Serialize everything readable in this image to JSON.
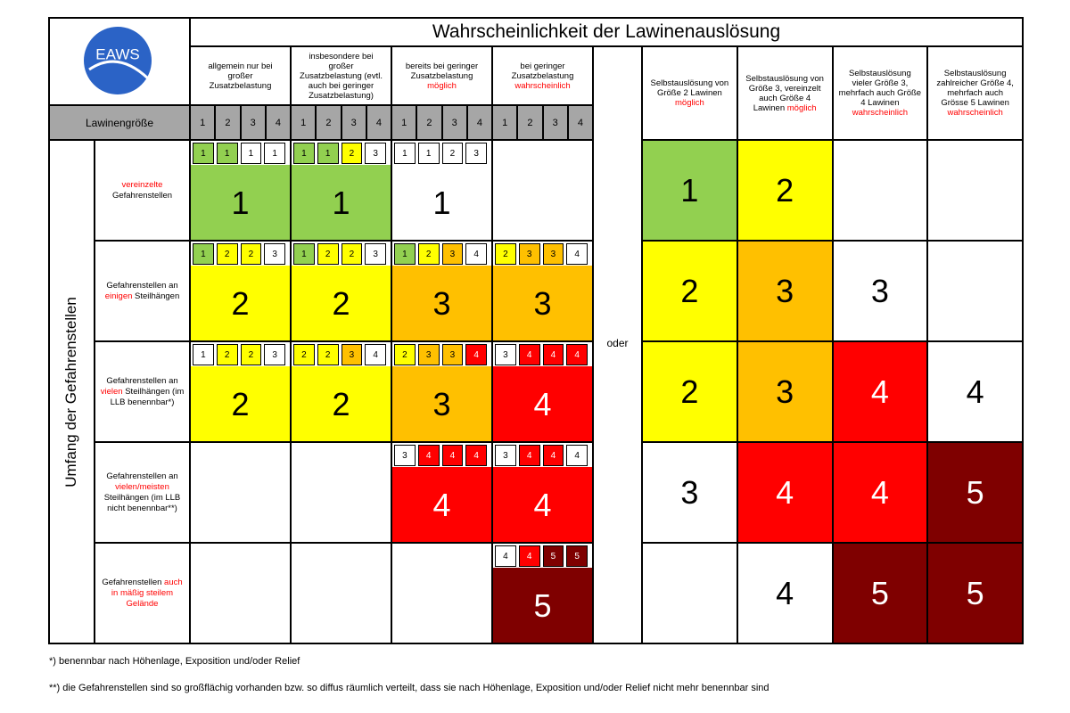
{
  "title": "Wahrscheinlichkeit der Lawinenauslösung",
  "logo": {
    "text": "EAWS"
  },
  "size_header": "Lawinengröße",
  "side_label": "Umfang der Gefahrenstellen",
  "separator": "oder",
  "left_columns": [
    {
      "header": [
        {
          "text": "allgemein nur bei großer Zusatzbelastung"
        }
      ],
      "sizes": [
        1,
        2,
        3,
        4
      ]
    },
    {
      "header": [
        {
          "text": "insbesondere bei großer Zusatzbelastung (evtl. auch bei geringer Zusatzbelastung)"
        }
      ],
      "sizes": [
        1,
        2,
        3,
        4
      ]
    },
    {
      "header": [
        {
          "text": "bereits bei geringer Zusatzbelastung"
        },
        {
          "text": "möglich",
          "color": "#ff0000"
        }
      ],
      "sizes": [
        1,
        2,
        3,
        4
      ]
    },
    {
      "header": [
        {
          "text": "bei geringer Zusatzbelastung"
        },
        {
          "text": "wahrscheinlich",
          "color": "#ff0000"
        }
      ],
      "sizes": [
        1,
        2,
        3,
        4
      ]
    }
  ],
  "right_columns": [
    {
      "header": [
        {
          "text": "Selbstauslösung von Größe 2 Lawinen"
        },
        {
          "text": "möglich",
          "color": "#ff0000"
        }
      ]
    },
    {
      "header": [
        {
          "text": "Selbstauslösung von Größe 3, vereinzelt auch Größe 4 Lawinen"
        },
        {
          "text": "möglich",
          "color": "#ff0000"
        }
      ]
    },
    {
      "header": [
        {
          "text": "Selbstauslösung vieler Größe 3, mehrfach auch Größe 4 Lawinen"
        },
        {
          "text": "wahrscheinlich",
          "color": "#ff0000"
        }
      ]
    },
    {
      "header": [
        {
          "text": "Selbstauslösung zahlreicher Größe 4, mehrfach auch Grösse 5 Lawinen"
        },
        {
          "text": "wahrscheinlich",
          "color": "#ff0000"
        }
      ]
    }
  ],
  "rows": [
    {
      "label": [
        {
          "text": "vereinzelte",
          "color": "#ff0000"
        },
        {
          "text": "Gefahrenstellen"
        }
      ],
      "left": [
        {
          "small": [
            {
              "value": 1,
              "color": "#92d050"
            },
            {
              "value": 1,
              "color": "#92d050"
            },
            {
              "value": 1,
              "color": "#ffffff"
            },
            {
              "value": 1,
              "color": "#ffffff"
            }
          ],
          "level": 1,
          "color": "#92d050"
        },
        {
          "small": [
            {
              "value": 1,
              "color": "#92d050"
            },
            {
              "value": 1,
              "color": "#92d050"
            },
            {
              "value": 2,
              "color": "#ffff00"
            },
            {
              "value": 3,
              "color": "#ffffff"
            }
          ],
          "level": 1,
          "color": "#92d050"
        },
        {
          "small": [
            {
              "value": 1,
              "color": "#ffffff"
            },
            {
              "value": 1,
              "color": "#ffffff"
            },
            {
              "value": 2,
              "color": "#ffffff"
            },
            {
              "value": 3,
              "color": "#ffffff"
            }
          ],
          "level": 1,
          "color": "#ffffff"
        },
        null
      ],
      "right": [
        {
          "level": 1,
          "color": "#92d050"
        },
        {
          "level": 2,
          "color": "#ffff00"
        },
        null,
        null
      ]
    },
    {
      "label": [
        {
          "text": "Gefahrenstellen an"
        },
        {
          "text": "einigen",
          "color": "#ff0000"
        },
        {
          "text": "Steilhängen"
        }
      ],
      "left": [
        {
          "small": [
            {
              "value": 1,
              "color": "#92d050"
            },
            {
              "value": 2,
              "color": "#ffff00"
            },
            {
              "value": 2,
              "color": "#ffff00"
            },
            {
              "value": 3,
              "color": "#ffffff"
            }
          ],
          "level": 2,
          "color": "#ffff00"
        },
        {
          "small": [
            {
              "value": 1,
              "color": "#92d050"
            },
            {
              "value": 2,
              "color": "#ffff00"
            },
            {
              "value": 2,
              "color": "#ffff00"
            },
            {
              "value": 3,
              "color": "#ffffff"
            }
          ],
          "level": 2,
          "color": "#ffff00"
        },
        {
          "small": [
            {
              "value": 1,
              "color": "#92d050"
            },
            {
              "value": 2,
              "color": "#ffff00"
            },
            {
              "value": 3,
              "color": "#ffc000"
            },
            {
              "value": 4,
              "color": "#ffffff"
            }
          ],
          "level": 3,
          "color": "#ffc000"
        },
        {
          "small": [
            {
              "value": 2,
              "color": "#ffff00"
            },
            {
              "value": 3,
              "color": "#ffc000"
            },
            {
              "value": 3,
              "color": "#ffc000"
            },
            {
              "value": 4,
              "color": "#ffffff"
            }
          ],
          "level": 3,
          "color": "#ffc000"
        }
      ],
      "right": [
        {
          "level": 2,
          "color": "#ffff00"
        },
        {
          "level": 3,
          "color": "#ffc000"
        },
        {
          "level": 3,
          "color": "#ffffff"
        },
        null
      ]
    },
    {
      "label": [
        {
          "text": "Gefahrenstellen an"
        },
        {
          "text": "vielen",
          "color": "#ff0000"
        },
        {
          "text": "Steilhängen (im LLB benennbar*)"
        }
      ],
      "left": [
        {
          "small": [
            {
              "value": 1,
              "color": "#ffffff"
            },
            {
              "value": 2,
              "color": "#ffff00"
            },
            {
              "value": 2,
              "color": "#ffff00"
            },
            {
              "value": 3,
              "color": "#ffffff"
            }
          ],
          "level": 2,
          "color": "#ffff00"
        },
        {
          "small": [
            {
              "value": 2,
              "color": "#ffff00"
            },
            {
              "value": 2,
              "color": "#ffff00"
            },
            {
              "value": 3,
              "color": "#ffc000"
            },
            {
              "value": 4,
              "color": "#ffffff"
            }
          ],
          "level": 2,
          "color": "#ffff00"
        },
        {
          "small": [
            {
              "value": 2,
              "color": "#ffff00"
            },
            {
              "value": 3,
              "color": "#ffc000"
            },
            {
              "value": 3,
              "color": "#ffc000"
            },
            {
              "value": 4,
              "color": "#ff0000"
            }
          ],
          "level": 3,
          "color": "#ffc000"
        },
        {
          "small": [
            {
              "value": 3,
              "color": "#ffffff"
            },
            {
              "value": 4,
              "color": "#ff0000"
            },
            {
              "value": 4,
              "color": "#ff0000"
            },
            {
              "value": 4,
              "color": "#ff0000"
            }
          ],
          "level": 4,
          "color": "#ff0000"
        }
      ],
      "right": [
        {
          "level": 2,
          "color": "#ffff00"
        },
        {
          "level": 3,
          "color": "#ffc000"
        },
        {
          "level": 4,
          "color": "#ff0000"
        },
        {
          "level": 4,
          "color": "#ffffff"
        }
      ]
    },
    {
      "label": [
        {
          "text": "Gefahrenstellen an"
        },
        {
          "text": "vielen/meisten",
          "color": "#ff0000"
        },
        {
          "text": "Steilhängen (im LLB nicht benennbar**)"
        }
      ],
      "left": [
        null,
        null,
        {
          "small": [
            {
              "value": 3,
              "color": "#ffffff"
            },
            {
              "value": 4,
              "color": "#ff0000"
            },
            {
              "value": 4,
              "color": "#ff0000"
            },
            {
              "value": 4,
              "color": "#ff0000"
            }
          ],
          "level": 4,
          "color": "#ff0000"
        },
        {
          "small": [
            {
              "value": 3,
              "color": "#ffffff"
            },
            {
              "value": 4,
              "color": "#ff0000"
            },
            {
              "value": 4,
              "color": "#ff0000"
            },
            {
              "value": 4,
              "color": "#ffffff"
            }
          ],
          "level": 4,
          "color": "#ff0000"
        }
      ],
      "right": [
        {
          "level": 3,
          "color": "#ffffff"
        },
        {
          "level": 4,
          "color": "#ff0000"
        },
        {
          "level": 4,
          "color": "#ff0000"
        },
        {
          "level": 5,
          "color": "#7f0000"
        }
      ]
    },
    {
      "label": [
        {
          "text": "Gefahrenstellen"
        },
        {
          "text": "auch in mäßig steilem Gelände",
          "color": "#ff0000"
        }
      ],
      "left": [
        null,
        null,
        null,
        {
          "small": [
            {
              "value": 4,
              "color": "#ffffff"
            },
            {
              "value": 4,
              "color": "#ff0000"
            },
            {
              "value": 5,
              "color": "#7f0000"
            },
            {
              "value": 5,
              "color": "#7f0000"
            }
          ],
          "level": 5,
          "color": "#7f0000"
        }
      ],
      "right": [
        null,
        {
          "level": 4,
          "color": "#ffffff"
        },
        {
          "level": 5,
          "color": "#7f0000"
        },
        {
          "level": 5,
          "color": "#7f0000"
        }
      ]
    }
  ],
  "footnotes": [
    "*) benennbar nach Höhenlage, Exposition und/oder Relief",
    "**) die Gefahrenstellen sind so großflächig vorhanden bzw. so diffus räumlich verteilt, dass sie nach Höhenlage, Exposition und/oder Relief nicht mehr benennbar sind"
  ]
}
